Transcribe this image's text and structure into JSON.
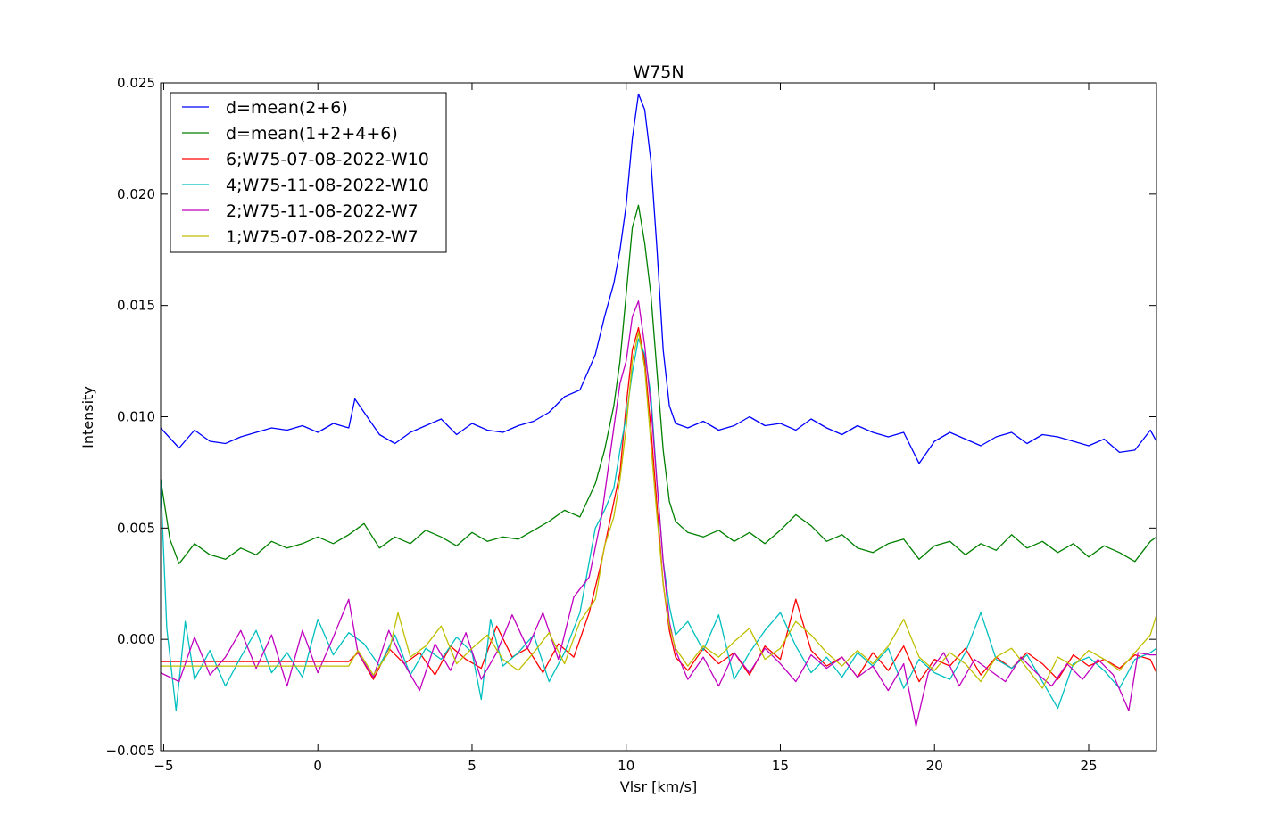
{
  "chart_data": {
    "type": "line",
    "title": "W75N",
    "xlabel": "Vlsr [km/s]",
    "ylabel": "Intensity",
    "xlim": [
      -5.1,
      27.2
    ],
    "ylim": [
      -0.005,
      0.025
    ],
    "xticks": [
      -5,
      0,
      5,
      10,
      15,
      20,
      25
    ],
    "xtick_labels": [
      "−5",
      "0",
      "5",
      "10",
      "15",
      "20",
      "25"
    ],
    "yticks": [
      -0.005,
      0.0,
      0.005,
      0.01,
      0.015,
      0.02,
      0.025
    ],
    "ytick_labels": [
      "−0.005",
      "0.000",
      "0.005",
      "0.010",
      "0.015",
      "0.020",
      "0.025"
    ],
    "grid": false,
    "legend_position": "top-left",
    "series": [
      {
        "name": "d=mean(2+6)",
        "color": "#0000ff",
        "x": [
          -5.1,
          -4.5,
          -4.0,
          -3.5,
          -3.0,
          -2.5,
          -2.0,
          -1.5,
          -1.0,
          -0.5,
          0.0,
          0.5,
          1.0,
          1.2,
          1.5,
          2.0,
          2.5,
          3.0,
          3.5,
          4.0,
          4.5,
          5.0,
          5.5,
          6.0,
          6.5,
          7.0,
          7.5,
          8.0,
          8.5,
          9.0,
          9.3,
          9.6,
          9.8,
          10.0,
          10.2,
          10.4,
          10.6,
          10.8,
          11.0,
          11.2,
          11.4,
          11.6,
          12.0,
          12.5,
          13.0,
          13.5,
          14.0,
          14.5,
          15.0,
          15.5,
          16.0,
          16.5,
          17.0,
          17.5,
          18.0,
          18.5,
          19.0,
          19.5,
          20.0,
          20.5,
          21.0,
          21.5,
          22.0,
          22.5,
          23.0,
          23.5,
          24.0,
          24.5,
          25.0,
          25.5,
          26.0,
          26.5,
          27.0,
          27.2
        ],
        "y": [
          0.0095,
          0.0086,
          0.0094,
          0.0089,
          0.0088,
          0.0091,
          0.0093,
          0.0095,
          0.0094,
          0.0096,
          0.0093,
          0.0097,
          0.0095,
          0.0108,
          0.0102,
          0.0092,
          0.0088,
          0.0093,
          0.0096,
          0.0099,
          0.0092,
          0.0097,
          0.0094,
          0.0093,
          0.0096,
          0.0098,
          0.0102,
          0.0109,
          0.0112,
          0.0128,
          0.0145,
          0.016,
          0.0175,
          0.0195,
          0.0225,
          0.0245,
          0.0238,
          0.0215,
          0.0175,
          0.013,
          0.0105,
          0.0097,
          0.0095,
          0.0098,
          0.0094,
          0.0096,
          0.01,
          0.0096,
          0.0097,
          0.0094,
          0.0099,
          0.0095,
          0.0092,
          0.0096,
          0.0093,
          0.0091,
          0.0093,
          0.0079,
          0.0089,
          0.0093,
          0.009,
          0.0087,
          0.0091,
          0.0093,
          0.0088,
          0.0092,
          0.0091,
          0.0089,
          0.0087,
          0.009,
          0.0084,
          0.0085,
          0.0094,
          0.0089
        ]
      },
      {
        "name": "d=mean(1+2+4+6)",
        "color": "#008000",
        "x": [
          -5.1,
          -4.8,
          -4.5,
          -4.0,
          -3.5,
          -3.0,
          -2.5,
          -2.0,
          -1.5,
          -1.0,
          -0.5,
          0.0,
          0.5,
          1.0,
          1.5,
          2.0,
          2.5,
          3.0,
          3.5,
          4.0,
          4.5,
          5.0,
          5.5,
          6.0,
          6.5,
          7.0,
          7.5,
          8.0,
          8.5,
          9.0,
          9.3,
          9.6,
          9.8,
          10.0,
          10.2,
          10.4,
          10.6,
          10.8,
          11.0,
          11.2,
          11.4,
          11.6,
          12.0,
          12.5,
          13.0,
          13.5,
          14.0,
          14.5,
          15.0,
          15.5,
          16.0,
          16.5,
          17.0,
          17.5,
          18.0,
          18.5,
          19.0,
          19.5,
          20.0,
          20.5,
          21.0,
          21.5,
          22.0,
          22.5,
          23.0,
          23.5,
          24.0,
          24.5,
          25.0,
          25.5,
          26.0,
          26.5,
          27.0,
          27.2
        ],
        "y": [
          0.0072,
          0.0045,
          0.0034,
          0.0043,
          0.0038,
          0.0036,
          0.0041,
          0.0038,
          0.0044,
          0.0041,
          0.0043,
          0.0046,
          0.0043,
          0.0047,
          0.0052,
          0.0041,
          0.0046,
          0.0043,
          0.0049,
          0.0046,
          0.0042,
          0.0048,
          0.0044,
          0.0046,
          0.0045,
          0.0049,
          0.0053,
          0.0058,
          0.0055,
          0.007,
          0.0085,
          0.0105,
          0.0125,
          0.0155,
          0.0185,
          0.0195,
          0.0178,
          0.0155,
          0.012,
          0.0085,
          0.0062,
          0.0053,
          0.0048,
          0.0046,
          0.0049,
          0.0044,
          0.0048,
          0.0043,
          0.0049,
          0.0056,
          0.0051,
          0.0044,
          0.0047,
          0.0041,
          0.0039,
          0.0043,
          0.0045,
          0.0036,
          0.0042,
          0.0044,
          0.0038,
          0.0043,
          0.004,
          0.0047,
          0.0041,
          0.0044,
          0.0039,
          0.0043,
          0.0037,
          0.0042,
          0.0039,
          0.0035,
          0.0044,
          0.0046
        ]
      },
      {
        "name": "6;W75-07-08-2022-W10",
        "color": "#ff0000",
        "x": [
          -5.1,
          -3.0,
          -1.0,
          1.0,
          1.3,
          1.8,
          2.3,
          2.8,
          3.3,
          3.8,
          4.3,
          4.8,
          5.3,
          5.8,
          6.3,
          6.8,
          7.3,
          7.8,
          8.3,
          8.8,
          9.2,
          9.5,
          9.8,
          10.0,
          10.2,
          10.4,
          10.6,
          10.8,
          11.0,
          11.2,
          11.4,
          11.6,
          12.0,
          12.5,
          13.0,
          13.5,
          14.0,
          14.5,
          15.0,
          15.5,
          16.0,
          16.5,
          17.0,
          17.5,
          18.0,
          18.5,
          19.0,
          19.5,
          20.0,
          20.5,
          21.0,
          21.5,
          22.0,
          22.5,
          23.0,
          23.5,
          24.0,
          24.5,
          25.0,
          25.5,
          26.0,
          26.5,
          27.0,
          27.2
        ],
        "y": [
          -0.001,
          -0.001,
          -0.001,
          -0.001,
          -0.0006,
          -0.0018,
          -0.0004,
          -0.0011,
          -0.0006,
          -0.0016,
          -0.0003,
          -0.0009,
          -0.0013,
          0.0006,
          -0.0008,
          -0.0004,
          -0.0015,
          -0.0002,
          -0.0008,
          0.0012,
          0.0035,
          0.0055,
          0.0075,
          0.0105,
          0.013,
          0.014,
          0.0125,
          0.0095,
          0.006,
          0.0025,
          0.0004,
          -0.0008,
          -0.0014,
          -0.0004,
          -0.0011,
          -0.0006,
          -0.0016,
          -0.0003,
          -0.0009,
          0.0018,
          -0.0005,
          -0.0012,
          -0.0008,
          -0.0017,
          -0.0006,
          -0.0014,
          -0.0003,
          -0.0019,
          -0.0009,
          -0.0012,
          -0.0004,
          -0.0016,
          -0.0008,
          -0.0013,
          -0.0006,
          -0.0011,
          -0.0018,
          -0.0007,
          -0.0012,
          -0.0009,
          -0.0013,
          -0.0007,
          -0.0009,
          -0.0015
        ]
      },
      {
        "name": "4;W75-11-08-2022-W10",
        "color": "#00bfbf",
        "x": [
          -5.1,
          -4.9,
          -4.6,
          -4.3,
          -4.0,
          -3.5,
          -3.0,
          -2.5,
          -2.0,
          -1.5,
          -1.0,
          -0.5,
          0.0,
          0.5,
          1.0,
          1.5,
          2.0,
          2.5,
          3.0,
          3.5,
          4.0,
          4.5,
          5.0,
          5.3,
          5.6,
          6.0,
          6.5,
          7.0,
          7.5,
          8.0,
          8.5,
          9.0,
          9.3,
          9.6,
          9.8,
          10.0,
          10.2,
          10.4,
          10.6,
          10.8,
          11.0,
          11.2,
          11.4,
          11.6,
          12.0,
          12.5,
          13.0,
          13.5,
          14.0,
          14.5,
          15.0,
          15.5,
          16.0,
          16.5,
          17.0,
          17.5,
          18.0,
          18.5,
          19.0,
          19.5,
          20.0,
          20.5,
          21.0,
          21.5,
          22.0,
          22.5,
          23.0,
          23.5,
          24.0,
          24.5,
          25.0,
          25.5,
          26.0,
          26.5,
          27.0,
          27.2
        ],
        "y": [
          0.0072,
          0.0005,
          -0.0032,
          0.0008,
          -0.0018,
          -0.0005,
          -0.0021,
          -0.0008,
          0.0004,
          -0.0015,
          -0.0006,
          -0.0017,
          0.0009,
          -0.0007,
          0.0003,
          -0.0002,
          -0.0012,
          0.0002,
          -0.0016,
          -0.0004,
          -0.0009,
          0.0001,
          -0.0006,
          -0.0027,
          0.0009,
          -0.0012,
          -0.0006,
          0.0002,
          -0.0019,
          -0.0006,
          0.0012,
          0.005,
          0.0058,
          0.0068,
          0.0085,
          0.01,
          0.012,
          0.0135,
          0.0128,
          0.011,
          0.007,
          0.0035,
          0.0015,
          0.0002,
          0.0008,
          -0.0005,
          0.0011,
          -0.0018,
          -0.0006,
          0.0004,
          0.0012,
          -0.0003,
          -0.0015,
          -0.0008,
          -0.0017,
          -0.0006,
          -0.0012,
          -0.0004,
          -0.0022,
          -0.0009,
          -0.0015,
          -0.0018,
          -0.0006,
          0.0012,
          -0.0009,
          -0.0013,
          -0.0007,
          -0.0019,
          -0.0031,
          -0.0011,
          -0.0008,
          -0.0014,
          -0.0022,
          -0.0009,
          -0.0006,
          -0.0004
        ]
      },
      {
        "name": "2;W75-11-08-2022-W7",
        "color": "#bf00bf",
        "x": [
          -5.1,
          -4.5,
          -4.0,
          -3.5,
          -3.0,
          -2.5,
          -2.0,
          -1.5,
          -1.0,
          -0.5,
          0.0,
          0.5,
          1.0,
          1.3,
          1.8,
          2.3,
          2.8,
          3.3,
          3.8,
          4.3,
          4.8,
          5.3,
          5.8,
          6.3,
          6.8,
          7.3,
          7.8,
          8.3,
          8.8,
          9.2,
          9.5,
          9.8,
          10.0,
          10.2,
          10.4,
          10.6,
          10.8,
          11.0,
          11.2,
          11.4,
          11.6,
          12.0,
          12.5,
          13.0,
          13.5,
          14.0,
          14.5,
          15.0,
          15.5,
          16.0,
          16.5,
          17.0,
          17.5,
          18.0,
          18.5,
          19.0,
          19.4,
          19.8,
          20.3,
          20.8,
          21.3,
          21.8,
          22.3,
          22.8,
          23.3,
          23.8,
          24.3,
          24.8,
          25.3,
          25.8,
          26.3,
          26.6,
          27.0,
          27.2
        ],
        "y": [
          -0.0015,
          -0.0019,
          0.0001,
          -0.0016,
          -0.0008,
          0.0004,
          -0.0013,
          0.0002,
          -0.0021,
          0.0004,
          -0.0015,
          0.0001,
          0.0018,
          -0.0006,
          -0.0017,
          0.0004,
          -0.0011,
          -0.0023,
          -0.0002,
          -0.0014,
          0.0003,
          -0.0018,
          -0.0006,
          0.0011,
          -0.0004,
          0.0012,
          -0.0009,
          0.0019,
          0.0028,
          0.0055,
          0.0085,
          0.0115,
          0.0125,
          0.0145,
          0.0152,
          0.0132,
          0.0105,
          0.007,
          0.0035,
          0.0008,
          -0.0005,
          -0.0018,
          -0.0008,
          -0.0021,
          -0.0006,
          -0.0015,
          -0.0004,
          -0.0011,
          -0.0019,
          -0.0007,
          -0.0013,
          -0.0008,
          -0.0017,
          -0.0012,
          -0.0023,
          -0.0011,
          -0.0039,
          -0.0015,
          -0.0006,
          -0.0021,
          -0.0009,
          -0.0014,
          -0.0019,
          -0.0008,
          -0.0015,
          -0.0021,
          -0.0011,
          -0.0018,
          -0.0009,
          -0.0016,
          -0.0032,
          -0.0006,
          -0.0007,
          -0.0007
        ]
      },
      {
        "name": "1;W75-07-08-2022-W7",
        "color": "#bfbf00",
        "x": [
          -5.1,
          -3.0,
          -1.0,
          1.0,
          1.3,
          1.8,
          2.3,
          2.6,
          3.0,
          3.5,
          4.0,
          4.5,
          5.0,
          5.5,
          6.0,
          6.5,
          7.0,
          7.5,
          8.0,
          8.5,
          9.0,
          9.3,
          9.6,
          9.8,
          10.0,
          10.2,
          10.4,
          10.6,
          10.8,
          11.0,
          11.2,
          11.4,
          11.6,
          12.0,
          12.5,
          13.0,
          13.5,
          14.0,
          14.5,
          15.0,
          15.5,
          16.0,
          16.5,
          17.0,
          17.5,
          18.0,
          18.5,
          19.0,
          19.5,
          20.0,
          20.5,
          21.0,
          21.5,
          22.0,
          22.5,
          23.0,
          23.5,
          24.0,
          24.5,
          25.0,
          25.5,
          26.0,
          26.5,
          27.0,
          27.2
        ],
        "y": [
          -0.0012,
          -0.0012,
          -0.0012,
          -0.0012,
          -0.0005,
          -0.0016,
          -0.0006,
          0.0012,
          -0.0008,
          -0.0003,
          0.0006,
          -0.0011,
          -0.0004,
          0.0002,
          -0.0009,
          -0.0014,
          -0.0006,
          0.0003,
          -0.0011,
          0.0008,
          0.0018,
          0.0042,
          0.0055,
          0.0072,
          0.0095,
          0.0125,
          0.0138,
          0.0122,
          0.0088,
          0.0055,
          0.0025,
          0.0006,
          -0.0004,
          -0.0012,
          -0.0003,
          -0.0008,
          -0.0001,
          0.0005,
          -0.0009,
          -0.0004,
          0.0008,
          0.0002,
          -0.0006,
          -0.0012,
          -0.0005,
          -0.0011,
          -0.0003,
          0.0009,
          -0.0008,
          -0.0014,
          -0.0006,
          -0.0011,
          -0.0019,
          -0.0008,
          -0.0004,
          -0.0013,
          -0.0022,
          -0.0008,
          -0.0012,
          -0.0005,
          -0.0009,
          -0.0014,
          -0.0006,
          0.0002,
          0.0011
        ]
      }
    ]
  }
}
